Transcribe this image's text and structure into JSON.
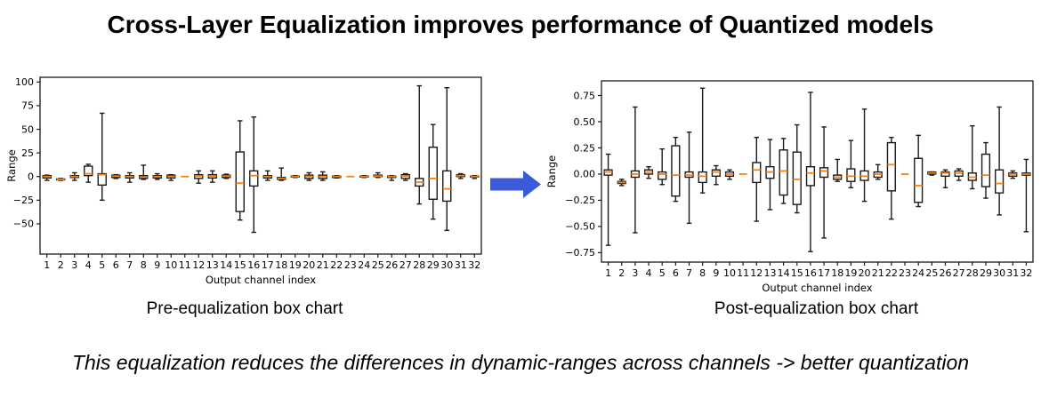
{
  "title": "Cross-Layer Equalization improves performance of Quantized models",
  "footnote": "This equalization reduces the differences in dynamic-ranges across channels -> better quantization",
  "arrow": {
    "name": "right-block-arrow",
    "color": "#3b5bd8"
  },
  "colors": {
    "median": "#ff7f0e",
    "box_stroke": "#1a1a1a",
    "box_fill": "#ffffff"
  },
  "chart_data": [
    {
      "type": "box",
      "caption": "Pre-equalization box chart",
      "xlabel": "Output channel index",
      "ylabel": "Range",
      "ylim": [
        -82,
        105
      ],
      "grid": false,
      "yticks": [
        {
          "value": 100,
          "label": "100"
        },
        {
          "value": 75,
          "label": "75"
        },
        {
          "value": 50,
          "label": "50"
        },
        {
          "value": 25,
          "label": "25"
        },
        {
          "value": 0,
          "label": "0"
        },
        {
          "value": -25,
          "label": "−25"
        },
        {
          "value": -50,
          "label": "−50"
        }
      ],
      "categories": [
        "1",
        "2",
        "3",
        "4",
        "5",
        "6",
        "7",
        "8",
        "9",
        "10",
        "11",
        "12",
        "13",
        "14",
        "15",
        "16",
        "17",
        "18",
        "19",
        "20",
        "21",
        "22",
        "23",
        "24",
        "25",
        "26",
        "27",
        "28",
        "29",
        "30",
        "31",
        "32"
      ],
      "box_format": [
        "whisker_low",
        "q1",
        "median",
        "q3",
        "whisker_high"
      ],
      "boxes": [
        [
          -4,
          -1.5,
          0,
          1,
          1.5
        ],
        [
          -4,
          -3.5,
          -3,
          -2.5,
          -2
        ],
        [
          -4,
          -1,
          0,
          1,
          4
        ],
        [
          -6,
          1,
          3,
          11,
          13
        ],
        [
          -25,
          -9,
          2,
          3,
          67
        ],
        [
          -2,
          -1,
          0.5,
          1.5,
          2
        ],
        [
          -6,
          -1.5,
          0,
          1,
          4
        ],
        [
          -3,
          -2,
          -0.5,
          1,
          12
        ],
        [
          -3,
          -1.5,
          0,
          1,
          3
        ],
        [
          -4,
          -1.5,
          0,
          1.5,
          2
        ],
        [
          0,
          0,
          0,
          0,
          0
        ],
        [
          -7,
          -2,
          0.5,
          2,
          6
        ],
        [
          -6,
          -1.5,
          0.5,
          2,
          6
        ],
        [
          -2,
          -1,
          0.5,
          1.5,
          2.5
        ],
        [
          -46,
          -37,
          -7,
          26,
          59
        ],
        [
          -59,
          -10,
          1,
          6,
          63
        ],
        [
          -4,
          -1.5,
          0,
          1,
          6
        ],
        [
          -4,
          -3,
          -2,
          -1,
          9
        ],
        [
          -1,
          -0.5,
          0,
          0.5,
          1
        ],
        [
          -4,
          -2,
          0,
          1.5,
          4
        ],
        [
          -4,
          -2,
          0,
          1.5,
          5
        ],
        [
          -1.5,
          -1,
          0,
          0.5,
          1
        ],
        [
          0,
          0,
          0,
          0,
          0
        ],
        [
          -1,
          -0.5,
          0,
          0.5,
          1
        ],
        [
          -1,
          0,
          0.5,
          1.5,
          4
        ],
        [
          -4,
          -1,
          0,
          0.5,
          1
        ],
        [
          -4,
          -2,
          0.5,
          2,
          3
        ],
        [
          -29,
          -10,
          -6,
          -2,
          96
        ],
        [
          -45,
          -24,
          -2,
          31,
          55
        ],
        [
          -57,
          -26,
          -13,
          6,
          94
        ],
        [
          -2,
          0,
          1,
          2,
          3
        ],
        [
          -2,
          -0.5,
          0,
          0.5,
          1
        ]
      ]
    },
    {
      "type": "box",
      "caption": "Post-equalization box chart",
      "xlabel": "Output channel index",
      "ylabel": "Range",
      "ylim": [
        -0.84,
        0.89
      ],
      "grid": false,
      "yticks": [
        {
          "value": 0.75,
          "label": "0.75"
        },
        {
          "value": 0.5,
          "label": "0.50"
        },
        {
          "value": 0.25,
          "label": "0.25"
        },
        {
          "value": 0,
          "label": "0.00"
        },
        {
          "value": -0.25,
          "label": "−0.25"
        },
        {
          "value": -0.5,
          "label": "−0.50"
        },
        {
          "value": -0.75,
          "label": "−0.75"
        }
      ],
      "categories": [
        "1",
        "2",
        "3",
        "4",
        "5",
        "6",
        "7",
        "8",
        "9",
        "10",
        "11",
        "12",
        "13",
        "14",
        "15",
        "16",
        "17",
        "18",
        "19",
        "20",
        "21",
        "22",
        "23",
        "24",
        "25",
        "26",
        "27",
        "28",
        "29",
        "30",
        "31",
        "32"
      ],
      "box_format": [
        "whisker_low",
        "q1",
        "median",
        "q3",
        "whisker_high"
      ],
      "boxes": [
        [
          -0.68,
          -0.01,
          0.02,
          0.04,
          0.19
        ],
        [
          -0.11,
          -0.09,
          -0.08,
          -0.07,
          -0.05
        ],
        [
          -0.56,
          -0.03,
          0,
          0.03,
          0.64
        ],
        [
          -0.04,
          0,
          0.02,
          0.04,
          0.07
        ],
        [
          -0.1,
          -0.05,
          0,
          0.02,
          0.24
        ],
        [
          -0.26,
          -0.21,
          -0.01,
          0.27,
          0.35
        ],
        [
          -0.47,
          -0.03,
          -0.01,
          0.02,
          0.4
        ],
        [
          -0.18,
          -0.08,
          -0.02,
          0.02,
          0.82
        ],
        [
          -0.1,
          -0.02,
          0.02,
          0.04,
          0.08
        ],
        [
          -0.05,
          -0.02,
          0,
          0.02,
          0.04
        ],
        [
          0,
          0,
          0,
          0,
          0
        ],
        [
          -0.45,
          -0.08,
          0.04,
          0.11,
          0.35
        ],
        [
          -0.34,
          -0.04,
          0.02,
          0.07,
          0.33
        ],
        [
          -0.28,
          -0.2,
          0.03,
          0.23,
          0.34
        ],
        [
          -0.37,
          -0.29,
          -0.05,
          0.21,
          0.47
        ],
        [
          -0.74,
          -0.11,
          0.01,
          0.07,
          0.78
        ],
        [
          -0.61,
          -0.03,
          0.03,
          0.06,
          0.45
        ],
        [
          -0.07,
          -0.05,
          -0.03,
          -0.01,
          0.14
        ],
        [
          -0.13,
          -0.07,
          -0.02,
          0.05,
          0.32
        ],
        [
          -0.26,
          -0.06,
          -0.02,
          0.03,
          0.62
        ],
        [
          -0.05,
          -0.03,
          0,
          0.02,
          0.09
        ],
        [
          -0.43,
          -0.16,
          0.09,
          0.3,
          0.35
        ],
        [
          0,
          0,
          0,
          0,
          0
        ],
        [
          -0.31,
          -0.27,
          -0.11,
          0.15,
          0.37
        ],
        [
          -0.01,
          0,
          0.01,
          0.02,
          0.02
        ],
        [
          -0.13,
          -0.02,
          0.01,
          0.02,
          0.04
        ],
        [
          -0.06,
          -0.02,
          0.01,
          0.03,
          0.05
        ],
        [
          -0.14,
          -0.06,
          -0.03,
          0.01,
          0.46
        ],
        [
          -0.23,
          -0.12,
          -0.01,
          0.19,
          0.3
        ],
        [
          -0.39,
          -0.18,
          -0.09,
          0.04,
          0.64
        ],
        [
          -0.04,
          -0.02,
          0,
          0.01,
          0.03
        ],
        [
          -0.55,
          -0.01,
          0,
          0.01,
          0.14
        ]
      ]
    }
  ]
}
